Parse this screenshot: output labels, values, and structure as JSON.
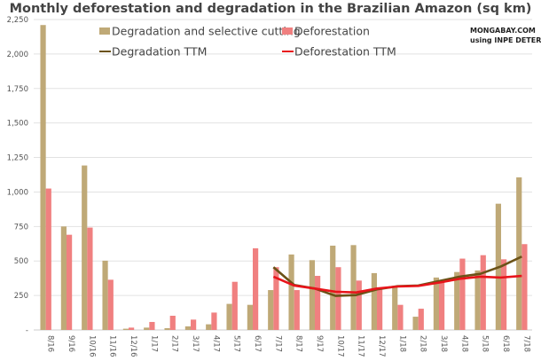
{
  "chart_data": {
    "type": "bar",
    "title": "Monthly deforestation and degradation in the Brazilian Amazon (sq km)",
    "source": [
      "MONGABAY.COM",
      "using INPE DETER-B"
    ],
    "xlabel": "",
    "ylabel": "",
    "ylim": [
      0,
      2250
    ],
    "yticks": [
      "-",
      "250",
      "500",
      "750",
      "1,000",
      "1,250",
      "1,500",
      "1,750",
      "2,000",
      "2,250"
    ],
    "grid": true,
    "legend_position": "top",
    "categories": [
      "8/16",
      "9/16",
      "10/16",
      "11/16",
      "12/16",
      "1/17",
      "2/17",
      "3/17",
      "4/17",
      "5/17",
      "6/17",
      "7/17",
      "8/17",
      "9/17",
      "10/17",
      "11/17",
      "12/17",
      "1/18",
      "2/18",
      "3/18",
      "4/18",
      "5/18",
      "6/18",
      "7/18"
    ],
    "series": [
      {
        "name": "Degradation and selective cutting",
        "kind": "bar",
        "color": "#bfa977",
        "values": [
          2210,
          750,
          1192,
          502,
          9,
          17,
          13,
          26,
          41,
          189,
          182,
          289,
          547,
          506,
          611,
          615,
          412,
          311,
          96,
          380,
          420,
          431,
          915,
          1106
        ]
      },
      {
        "name": "Deforestation",
        "kind": "bar",
        "color": "#f08080",
        "values": [
          1025,
          690,
          742,
          364,
          17,
          58,
          103,
          75,
          126,
          349,
          592,
          455,
          289,
          392,
          455,
          358,
          300,
          182,
          154,
          354,
          517,
          542,
          512,
          622
        ]
      },
      {
        "name": "Degradation TTM",
        "kind": "line",
        "color": "#6b5217",
        "values": [
          null,
          null,
          null,
          null,
          null,
          null,
          null,
          null,
          null,
          null,
          null,
          455,
          326,
          300,
          247,
          253,
          294,
          317,
          322,
          354,
          386,
          407,
          461,
          532
        ]
      },
      {
        "name": "Deforestation TTM",
        "kind": "line",
        "color": "#e8141a",
        "values": [
          null,
          null,
          null,
          null,
          null,
          null,
          null,
          null,
          null,
          null,
          null,
          386,
          322,
          300,
          277,
          272,
          300,
          315,
          319,
          343,
          371,
          386,
          380,
          392
        ]
      }
    ]
  }
}
